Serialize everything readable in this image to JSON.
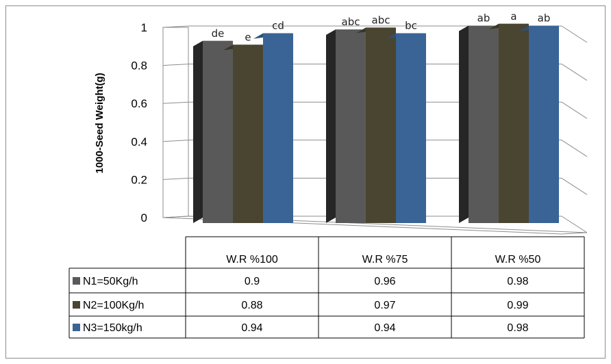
{
  "chart_data": {
    "type": "bar",
    "ylabel": "1000-Seed Weight(g)",
    "ylim": [
      0,
      1
    ],
    "yticks": [
      "0",
      "0.2",
      "0.4",
      "0.6",
      "0.8",
      "1"
    ],
    "categories": [
      "W.R %100",
      "W.R %75",
      "W.R %50"
    ],
    "series": [
      {
        "name": "N1=50Kg/h",
        "color": "#595959",
        "values": [
          0.9,
          0.96,
          0.98
        ],
        "labels": [
          "de",
          "abc",
          "ab"
        ]
      },
      {
        "name": "N2=100Kg/h",
        "color": "#4a4530",
        "values": [
          0.88,
          0.97,
          0.99
        ],
        "labels": [
          "e",
          "abc",
          "a"
        ]
      },
      {
        "name": "N3=150kg/h",
        "color": "#3a6496",
        "values": [
          0.94,
          0.94,
          0.98
        ],
        "labels": [
          "cd",
          "bc",
          "ab"
        ]
      }
    ],
    "table": {
      "rows": [
        [
          "0.9",
          "0.96",
          "0.98"
        ],
        [
          "0.88",
          "0.97",
          "0.99"
        ],
        [
          "0.94",
          "0.94",
          "0.98"
        ]
      ]
    }
  }
}
